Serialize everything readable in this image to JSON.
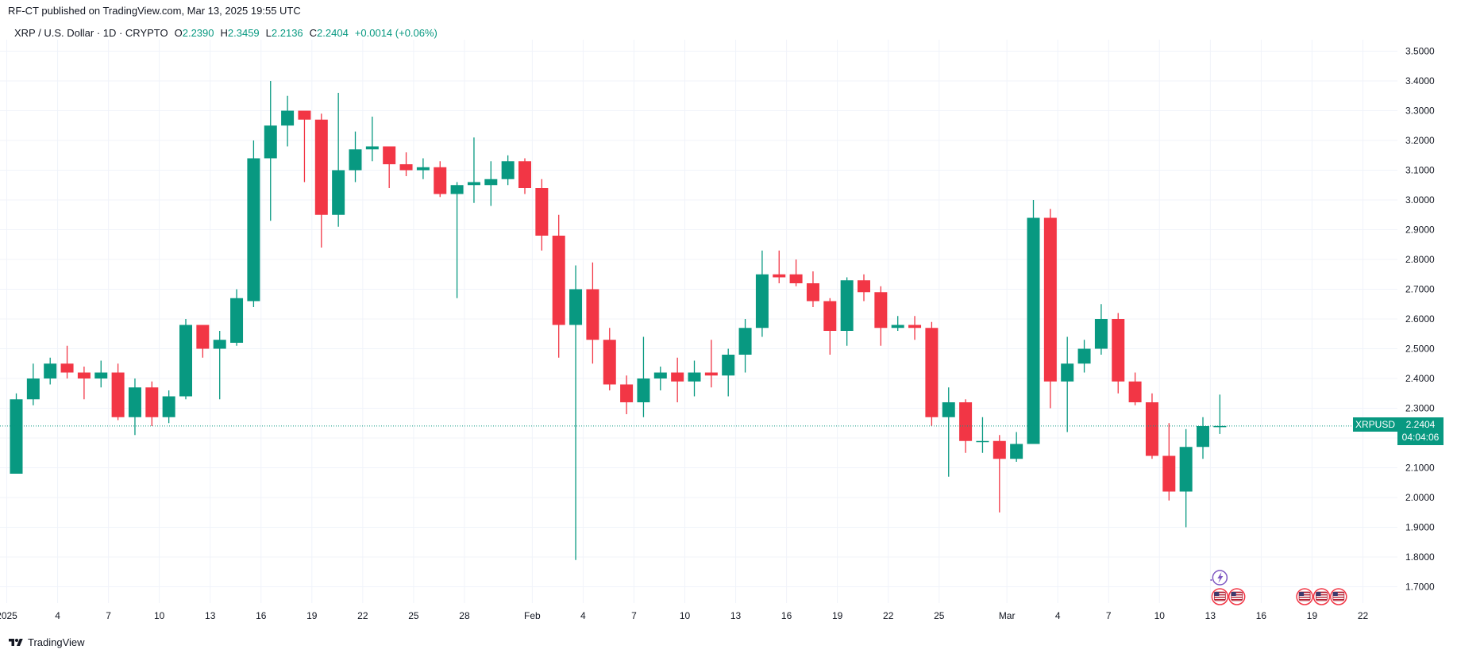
{
  "header": {
    "published": "RF-CT published on TradingView.com, Mar 13, 2025 19:55 UTC"
  },
  "legend": {
    "symbol": "XRP / U.S. Dollar · 1D · CRYPTO",
    "o_label": "O",
    "o": "2.2390",
    "h_label": "H",
    "h": "2.3459",
    "l_label": "L",
    "l": "2.2136",
    "c_label": "C",
    "c": "2.2404",
    "change": "+0.0014 (+0.06%)"
  },
  "price_tag": {
    "ticker": "XRPUSD",
    "price": "2.2404",
    "countdown": "04:04:06"
  },
  "brand": {
    "name": "TradingView"
  },
  "colors": {
    "up": "#089981",
    "down": "#F23645",
    "grid": "#F0F3FA",
    "last_price_line": "#089981"
  },
  "chart_data": {
    "type": "candlestick",
    "ylim": [
      1.63,
      3.55
    ],
    "y_ticks": [
      "3.5000",
      "3.4000",
      "3.3000",
      "3.2000",
      "3.1000",
      "3.0000",
      "2.9000",
      "2.8000",
      "2.7000",
      "2.6000",
      "2.5000",
      "2.4000",
      "2.3000",
      "2.2000",
      "2.1000",
      "2.0000",
      "1.9000",
      "1.8000",
      "1.7000"
    ],
    "x_ticks": [
      {
        "label": "2025",
        "day": 0
      },
      {
        "label": "4",
        "day": 3
      },
      {
        "label": "7",
        "day": 6
      },
      {
        "label": "10",
        "day": 9
      },
      {
        "label": "13",
        "day": 12
      },
      {
        "label": "16",
        "day": 15
      },
      {
        "label": "19",
        "day": 18
      },
      {
        "label": "22",
        "day": 21
      },
      {
        "label": "25",
        "day": 24
      },
      {
        "label": "28",
        "day": 27
      },
      {
        "label": "Feb",
        "day": 31
      },
      {
        "label": "4",
        "day": 34
      },
      {
        "label": "7",
        "day": 37
      },
      {
        "label": "10",
        "day": 40
      },
      {
        "label": "13",
        "day": 43
      },
      {
        "label": "16",
        "day": 46
      },
      {
        "label": "19",
        "day": 49
      },
      {
        "label": "22",
        "day": 52
      },
      {
        "label": "25",
        "day": 55
      },
      {
        "label": "Mar",
        "day": 59
      },
      {
        "label": "4",
        "day": 62
      },
      {
        "label": "7",
        "day": 65
      },
      {
        "label": "10",
        "day": 68
      },
      {
        "label": "13",
        "day": 71
      },
      {
        "label": "16",
        "day": 74
      },
      {
        "label": "19",
        "day": 77
      },
      {
        "label": "22",
        "day": 80
      }
    ],
    "candles": [
      {
        "d": "2025-01-01",
        "o": 2.08,
        "h": 2.35,
        "l": 2.08,
        "c": 2.33
      },
      {
        "d": "2025-01-02",
        "o": 2.33,
        "h": 2.45,
        "l": 2.31,
        "c": 2.4
      },
      {
        "d": "2025-01-03",
        "o": 2.4,
        "h": 2.47,
        "l": 2.38,
        "c": 2.45
      },
      {
        "d": "2025-01-04",
        "o": 2.45,
        "h": 2.51,
        "l": 2.4,
        "c": 2.42
      },
      {
        "d": "2025-01-05",
        "o": 2.42,
        "h": 2.44,
        "l": 2.33,
        "c": 2.4
      },
      {
        "d": "2025-01-06",
        "o": 2.4,
        "h": 2.46,
        "l": 2.37,
        "c": 2.42
      },
      {
        "d": "2025-01-07",
        "o": 2.42,
        "h": 2.45,
        "l": 2.26,
        "c": 2.27
      },
      {
        "d": "2025-01-08",
        "o": 2.27,
        "h": 2.4,
        "l": 2.21,
        "c": 2.37
      },
      {
        "d": "2025-01-09",
        "o": 2.37,
        "h": 2.39,
        "l": 2.24,
        "c": 2.27
      },
      {
        "d": "2025-01-10",
        "o": 2.27,
        "h": 2.36,
        "l": 2.25,
        "c": 2.34
      },
      {
        "d": "2025-01-11",
        "o": 2.34,
        "h": 2.6,
        "l": 2.33,
        "c": 2.58
      },
      {
        "d": "2025-01-12",
        "o": 2.58,
        "h": 2.58,
        "l": 2.47,
        "c": 2.5
      },
      {
        "d": "2025-01-13",
        "o": 2.5,
        "h": 2.56,
        "l": 2.33,
        "c": 2.53
      },
      {
        "d": "2025-01-14",
        "o": 2.52,
        "h": 2.7,
        "l": 2.51,
        "c": 2.67
      },
      {
        "d": "2025-01-15",
        "o": 2.66,
        "h": 3.2,
        "l": 2.64,
        "c": 3.14
      },
      {
        "d": "2025-01-16",
        "o": 3.14,
        "h": 3.4,
        "l": 2.93,
        "c": 3.25
      },
      {
        "d": "2025-01-17",
        "o": 3.25,
        "h": 3.35,
        "l": 3.18,
        "c": 3.3
      },
      {
        "d": "2025-01-18",
        "o": 3.3,
        "h": 3.3,
        "l": 3.06,
        "c": 3.27
      },
      {
        "d": "2025-01-19",
        "o": 3.27,
        "h": 3.29,
        "l": 2.84,
        "c": 2.95
      },
      {
        "d": "2025-01-20",
        "o": 2.95,
        "h": 3.36,
        "l": 2.91,
        "c": 3.1
      },
      {
        "d": "2025-01-21",
        "o": 3.1,
        "h": 3.23,
        "l": 3.06,
        "c": 3.17
      },
      {
        "d": "2025-01-22",
        "o": 3.17,
        "h": 3.28,
        "l": 3.13,
        "c": 3.18
      },
      {
        "d": "2025-01-23",
        "o": 3.18,
        "h": 3.18,
        "l": 3.04,
        "c": 3.12
      },
      {
        "d": "2025-01-24",
        "o": 3.12,
        "h": 3.16,
        "l": 3.08,
        "c": 3.1
      },
      {
        "d": "2025-01-25",
        "o": 3.1,
        "h": 3.14,
        "l": 3.07,
        "c": 3.11
      },
      {
        "d": "2025-01-26",
        "o": 3.11,
        "h": 3.13,
        "l": 3.01,
        "c": 3.02
      },
      {
        "d": "2025-01-27",
        "o": 3.02,
        "h": 3.06,
        "l": 2.67,
        "c": 3.05
      },
      {
        "d": "2025-01-28",
        "o": 3.05,
        "h": 3.21,
        "l": 2.99,
        "c": 3.06
      },
      {
        "d": "2025-01-29",
        "o": 3.05,
        "h": 3.13,
        "l": 2.98,
        "c": 3.07
      },
      {
        "d": "2025-01-30",
        "o": 3.07,
        "h": 3.15,
        "l": 3.05,
        "c": 3.13
      },
      {
        "d": "2025-01-31",
        "o": 3.13,
        "h": 3.14,
        "l": 3.02,
        "c": 3.04
      },
      {
        "d": "2025-02-01",
        "o": 3.04,
        "h": 3.07,
        "l": 2.83,
        "c": 2.88
      },
      {
        "d": "2025-02-02",
        "o": 2.88,
        "h": 2.95,
        "l": 2.47,
        "c": 2.58
      },
      {
        "d": "2025-02-03",
        "o": 2.58,
        "h": 2.78,
        "l": 1.79,
        "c": 2.7
      },
      {
        "d": "2025-02-04",
        "o": 2.7,
        "h": 2.79,
        "l": 2.45,
        "c": 2.53
      },
      {
        "d": "2025-02-05",
        "o": 2.53,
        "h": 2.57,
        "l": 2.36,
        "c": 2.38
      },
      {
        "d": "2025-02-06",
        "o": 2.38,
        "h": 2.41,
        "l": 2.28,
        "c": 2.32
      },
      {
        "d": "2025-02-07",
        "o": 2.32,
        "h": 2.54,
        "l": 2.27,
        "c": 2.4
      },
      {
        "d": "2025-02-08",
        "o": 2.4,
        "h": 2.44,
        "l": 2.36,
        "c": 2.42
      },
      {
        "d": "2025-02-09",
        "o": 2.42,
        "h": 2.47,
        "l": 2.32,
        "c": 2.39
      },
      {
        "d": "2025-02-10",
        "o": 2.39,
        "h": 2.46,
        "l": 2.34,
        "c": 2.42
      },
      {
        "d": "2025-02-11",
        "o": 2.42,
        "h": 2.53,
        "l": 2.37,
        "c": 2.41
      },
      {
        "d": "2025-02-12",
        "o": 2.41,
        "h": 2.5,
        "l": 2.34,
        "c": 2.48
      },
      {
        "d": "2025-02-13",
        "o": 2.48,
        "h": 2.6,
        "l": 2.42,
        "c": 2.57
      },
      {
        "d": "2025-02-14",
        "o": 2.57,
        "h": 2.83,
        "l": 2.54,
        "c": 2.75
      },
      {
        "d": "2025-02-15",
        "o": 2.75,
        "h": 2.83,
        "l": 2.72,
        "c": 2.74
      },
      {
        "d": "2025-02-16",
        "o": 2.75,
        "h": 2.8,
        "l": 2.71,
        "c": 2.72
      },
      {
        "d": "2025-02-17",
        "o": 2.72,
        "h": 2.76,
        "l": 2.64,
        "c": 2.66
      },
      {
        "d": "2025-02-18",
        "o": 2.66,
        "h": 2.67,
        "l": 2.48,
        "c": 2.56
      },
      {
        "d": "2025-02-19",
        "o": 2.56,
        "h": 2.74,
        "l": 2.51,
        "c": 2.73
      },
      {
        "d": "2025-02-20",
        "o": 2.73,
        "h": 2.75,
        "l": 2.66,
        "c": 2.69
      },
      {
        "d": "2025-02-21",
        "o": 2.69,
        "h": 2.71,
        "l": 2.51,
        "c": 2.57
      },
      {
        "d": "2025-02-22",
        "o": 2.57,
        "h": 2.61,
        "l": 2.56,
        "c": 2.58
      },
      {
        "d": "2025-02-23",
        "o": 2.58,
        "h": 2.61,
        "l": 2.53,
        "c": 2.57
      },
      {
        "d": "2025-02-24",
        "o": 2.57,
        "h": 2.59,
        "l": 2.24,
        "c": 2.27
      },
      {
        "d": "2025-02-25",
        "o": 2.27,
        "h": 2.37,
        "l": 2.07,
        "c": 2.32
      },
      {
        "d": "2025-02-26",
        "o": 2.32,
        "h": 2.33,
        "l": 2.15,
        "c": 2.19
      },
      {
        "d": "2025-02-27",
        "o": 2.19,
        "h": 2.27,
        "l": 2.15,
        "c": 2.19
      },
      {
        "d": "2025-02-28",
        "o": 2.19,
        "h": 2.21,
        "l": 1.95,
        "c": 2.13
      },
      {
        "d": "2025-03-01",
        "o": 2.13,
        "h": 2.22,
        "l": 2.12,
        "c": 2.18
      },
      {
        "d": "2025-03-02",
        "o": 2.18,
        "h": 3.0,
        "l": 2.18,
        "c": 2.94
      },
      {
        "d": "2025-03-03",
        "o": 2.94,
        "h": 2.97,
        "l": 2.3,
        "c": 2.39
      },
      {
        "d": "2025-03-04",
        "o": 2.39,
        "h": 2.54,
        "l": 2.22,
        "c": 2.45
      },
      {
        "d": "2025-03-05",
        "o": 2.45,
        "h": 2.53,
        "l": 2.42,
        "c": 2.5
      },
      {
        "d": "2025-03-06",
        "o": 2.5,
        "h": 2.65,
        "l": 2.48,
        "c": 2.6
      },
      {
        "d": "2025-03-07",
        "o": 2.6,
        "h": 2.62,
        "l": 2.35,
        "c": 2.39
      },
      {
        "d": "2025-03-08",
        "o": 2.39,
        "h": 2.42,
        "l": 2.31,
        "c": 2.32
      },
      {
        "d": "2025-03-09",
        "o": 2.32,
        "h": 2.35,
        "l": 2.13,
        "c": 2.14
      },
      {
        "d": "2025-03-10",
        "o": 2.14,
        "h": 2.25,
        "l": 1.99,
        "c": 2.02
      },
      {
        "d": "2025-03-11",
        "o": 2.02,
        "h": 2.23,
        "l": 1.9,
        "c": 2.17
      },
      {
        "d": "2025-03-12",
        "o": 2.17,
        "h": 2.27,
        "l": 2.13,
        "c": 2.24
      },
      {
        "d": "2025-03-13",
        "o": 2.239,
        "h": 2.3459,
        "l": 2.2136,
        "c": 2.2404
      }
    ],
    "event_markers": {
      "flash_day": 71,
      "flag_days": [
        71,
        72,
        76,
        77,
        78
      ]
    },
    "last_price": 2.2404
  }
}
